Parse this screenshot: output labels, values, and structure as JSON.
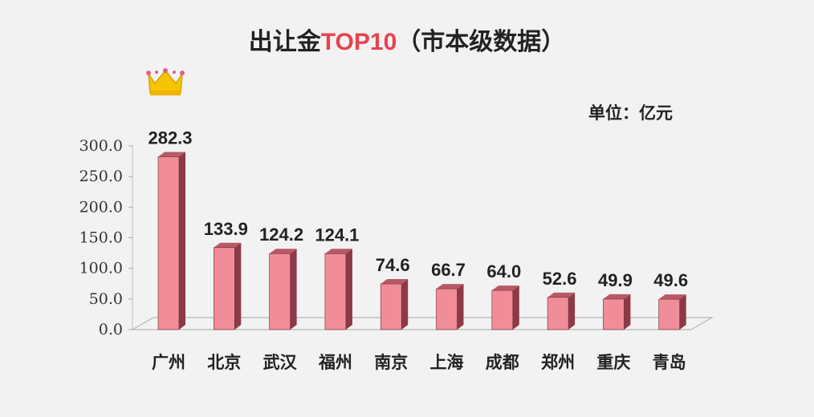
{
  "chart_data": {
    "type": "bar",
    "title_main": "出让金",
    "title_accent": "TOP10",
    "title_suffix": "（市本级数据）",
    "unit_label": "单位：亿元",
    "categories": [
      "广州",
      "北京",
      "武汉",
      "福州",
      "南京",
      "上海",
      "成都",
      "郑州",
      "重庆",
      "青岛"
    ],
    "values": [
      282.3,
      133.9,
      124.2,
      124.1,
      74.6,
      66.7,
      64.0,
      52.6,
      49.9,
      49.6
    ],
    "value_labels": [
      "282.3",
      "133.9",
      "124.2",
      "124.1",
      "74.6",
      "66.7",
      "64.0",
      "52.6",
      "49.9",
      "49.6"
    ],
    "yticks": [
      "0.0",
      "50.0",
      "100.0",
      "150.0",
      "200.0",
      "250.0",
      "300.0"
    ],
    "ylim": [
      0,
      300
    ],
    "xlabel": "",
    "ylabel": "",
    "grid": false,
    "legend": "none",
    "highlight": "crown icon above top bar"
  },
  "colors": {
    "background": "#f2f2f2",
    "bar_front": "#f08d99",
    "bar_side": "#8c3a46",
    "bar_top": "#b85a66",
    "title_accent": "#e8424f",
    "title": "#222222",
    "crown": "#f5c400"
  },
  "icons": {
    "crown": "crown-icon"
  }
}
